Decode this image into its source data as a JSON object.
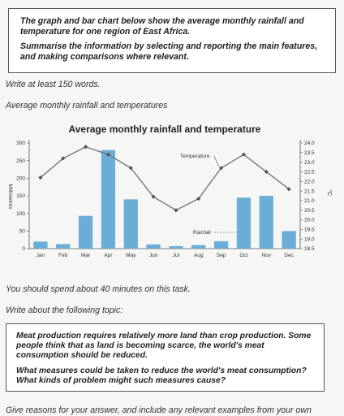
{
  "task": {
    "paragraph1": "The graph and bar chart below show the average monthly rainfall and temperature for one region of East Africa.",
    "paragraph2": "Summarise the information by selecting and reporting the main features, and making comparisons where relevant."
  },
  "instructions": {
    "min_words": "Write at least 150 words.",
    "chart_caption": "Average monthly rainfall and temperatures",
    "time_note": "You should spend about 40 minutes on this task.",
    "topic_intro": "Write about the following topic:"
  },
  "topic": {
    "paragraph1": "Meat production requires relatively more land than crop production. Some people think that as land is becoming scarce, the world's meat consumption should be reduced.",
    "paragraph2": "What measures could be taken to reduce the world's meat consumption? What kinds of problem might such measures cause?"
  },
  "footer": {
    "text": "Give reasons for your answer, and include any relevant examples from your own"
  },
  "chart_data": {
    "type": "bar",
    "title": "Average monthly rainfall and temperature",
    "categories": [
      "Jan",
      "Feb",
      "Mar",
      "Apr",
      "May",
      "Jun",
      "Jul",
      "Aug",
      "Sep",
      "Oct",
      "Nov",
      "Dec"
    ],
    "ylabel": "Millimetres",
    "ylim": [
      0,
      300
    ],
    "yticks": [
      "0",
      "50",
      "100",
      "150",
      "200",
      "250",
      "300"
    ],
    "y2label": "°C",
    "y2lim": [
      18.5,
      24.0
    ],
    "y2ticks": [
      "18.5",
      "19.0",
      "19.5",
      "20.0",
      "20.5",
      "21.0",
      "21.5",
      "22.0",
      "22.5",
      "23.0",
      "23.5",
      "24.0"
    ],
    "bar_color": "#6aaed8",
    "line_color": "#777777",
    "series": [
      {
        "name": "Rainfall",
        "type": "bar",
        "values": [
          20,
          13,
          93,
          280,
          140,
          12,
          7,
          10,
          21,
          145,
          150,
          50
        ]
      },
      {
        "name": "Temperature",
        "type": "line",
        "values": [
          22.2,
          23.2,
          23.8,
          23.4,
          22.7,
          21.2,
          20.5,
          21.1,
          22.7,
          23.4,
          22.5,
          21.6
        ]
      }
    ],
    "annotations": [
      "Temperature",
      "Rainfall"
    ]
  }
}
